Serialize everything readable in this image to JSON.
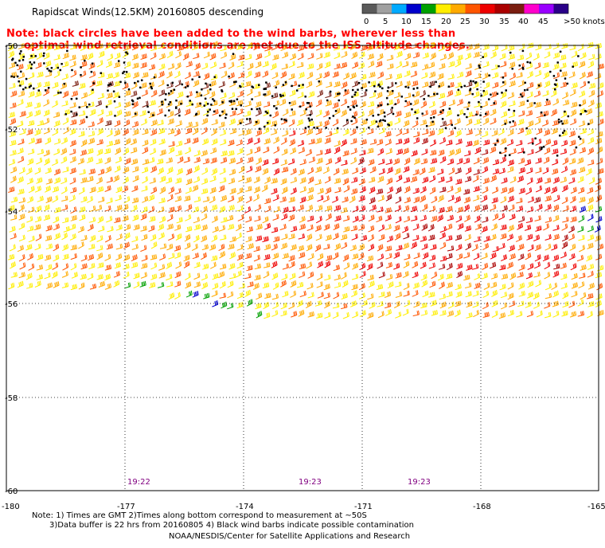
{
  "title": "Rapidscat Winds(12.5KM) 20160805 descending",
  "note_lines": [
    "Note: black circles have been added to the wind barbs, wherever less than",
    "optimal wind retrieval conditions are met due to the ISS altitude changes."
  ],
  "legend": {
    "labels": [
      "0",
      "5",
      "10",
      "15",
      "20",
      "25",
      "30",
      "35",
      "40",
      "45",
      ">50 knots"
    ],
    "colors": [
      "#5a5a5a",
      "#a0a0a0",
      "#00aaff",
      "#0000cc",
      "#00a000",
      "#ffee00",
      "#ffaa00",
      "#ff5500",
      "#ee0000",
      "#aa0000",
      "#7a1e10",
      "#ff00cc",
      "#9900ff",
      "#2a0088"
    ]
  },
  "map": {
    "lon_ticks": [
      "-180",
      "-177",
      "-174",
      "-171",
      "-168",
      "-165"
    ],
    "lat_ticks": [
      "-50",
      "-52",
      "-54",
      "-56",
      "-58",
      "-60"
    ],
    "time_labels": [
      "19:22",
      "19:23",
      "19:23"
    ],
    "time_label_color": "#800080"
  },
  "footer_lines": [
    "Note: 1) Times are GMT 2)Times along bottom correspond to measurement at ~50S",
    "3)Data buffer is 22 hrs from 20160805 4) Black wind barbs indicate possible contamination",
    "NOAA/NESDIS/Center for Satellite Applications and Research"
  ]
}
